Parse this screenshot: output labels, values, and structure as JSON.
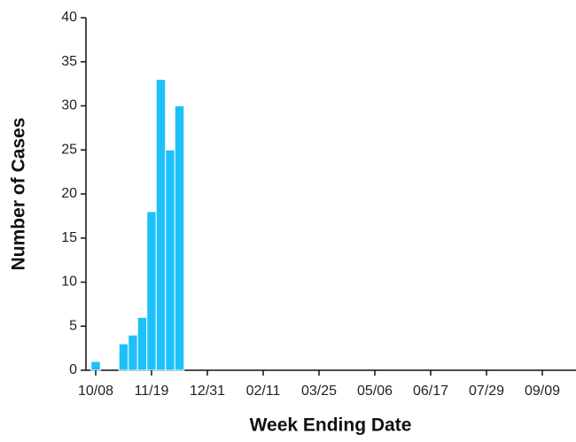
{
  "chart_data": {
    "type": "bar",
    "x_label": "Week Ending Date",
    "y_label": "Number of Cases",
    "color": "#1ec0fa",
    "categories": [
      "10/08",
      null,
      null,
      null,
      null,
      null,
      "11/19",
      null,
      null,
      null,
      null,
      null,
      "12/31",
      null,
      null,
      null,
      null,
      null,
      "02/11",
      null,
      null,
      null,
      null,
      null,
      "03/25",
      null,
      null,
      null,
      null,
      null,
      "05/06",
      null,
      null,
      null,
      null,
      null,
      "06/17",
      null,
      null,
      null,
      null,
      null,
      "07/29",
      null,
      null,
      null,
      null,
      null,
      "09/09",
      null,
      null,
      null
    ],
    "values": [
      1,
      0,
      0,
      3,
      4,
      6,
      18,
      33,
      25,
      30,
      0,
      0,
      0,
      0,
      0,
      0,
      0,
      0,
      0,
      0,
      0,
      0,
      0,
      0,
      0,
      0,
      0,
      0,
      0,
      0,
      0,
      0,
      0,
      0,
      0,
      0,
      0,
      0,
      0,
      0,
      0,
      0,
      0,
      0,
      0,
      0,
      0,
      0,
      0,
      0,
      0,
      0
    ],
    "ylim": [
      0,
      40
    ],
    "yticks": [
      0,
      5,
      10,
      15,
      20,
      25,
      30,
      35,
      40
    ],
    "grid": false
  }
}
